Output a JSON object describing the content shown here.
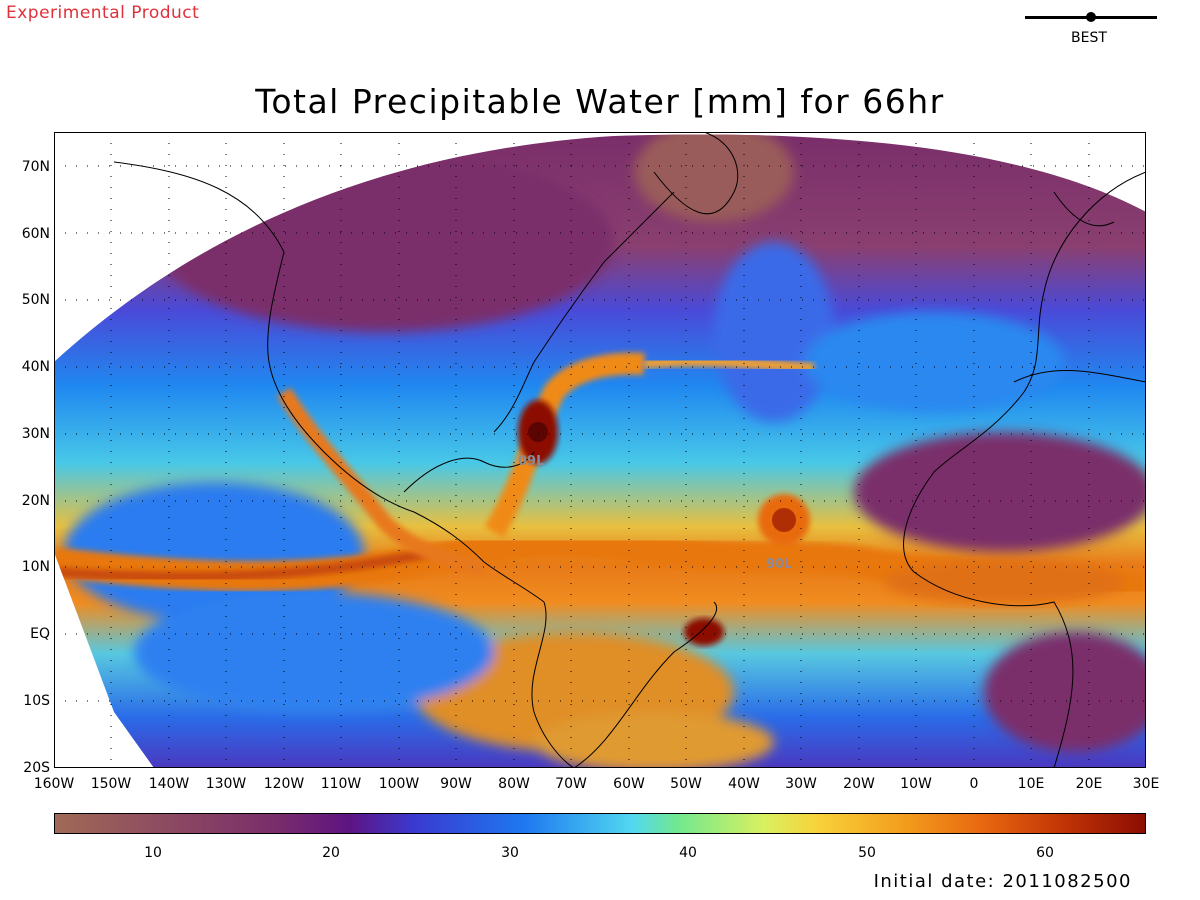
{
  "header": {
    "product_label": "Experimental Product",
    "legend_label": "BEST"
  },
  "title": "Total Precipitable Water [mm] for 66hr",
  "map": {
    "lat_labels": [
      "70N",
      "60N",
      "50N",
      "40N",
      "30N",
      "20N",
      "10N",
      "EQ",
      "10S",
      "20S"
    ],
    "lon_labels": [
      "160W",
      "150W",
      "140W",
      "130W",
      "120W",
      "110W",
      "100W",
      "90W",
      "80W",
      "70W",
      "60W",
      "50W",
      "40W",
      "30W",
      "20W",
      "10W",
      "0",
      "10E",
      "20E",
      "30E"
    ],
    "storm_labels": [
      "09L",
      "90L"
    ],
    "colors": {
      "low": "#8b4a6e",
      "mid": "#1e78f0",
      "moist": "#f39c1c",
      "peak": "#8c0c02"
    }
  },
  "colorbar": {
    "tick_labels": [
      "10",
      "20",
      "30",
      "40",
      "50",
      "60"
    ],
    "range": [
      4,
      66
    ]
  },
  "footer": {
    "initial_date": "Initial date: 2011082500"
  }
}
